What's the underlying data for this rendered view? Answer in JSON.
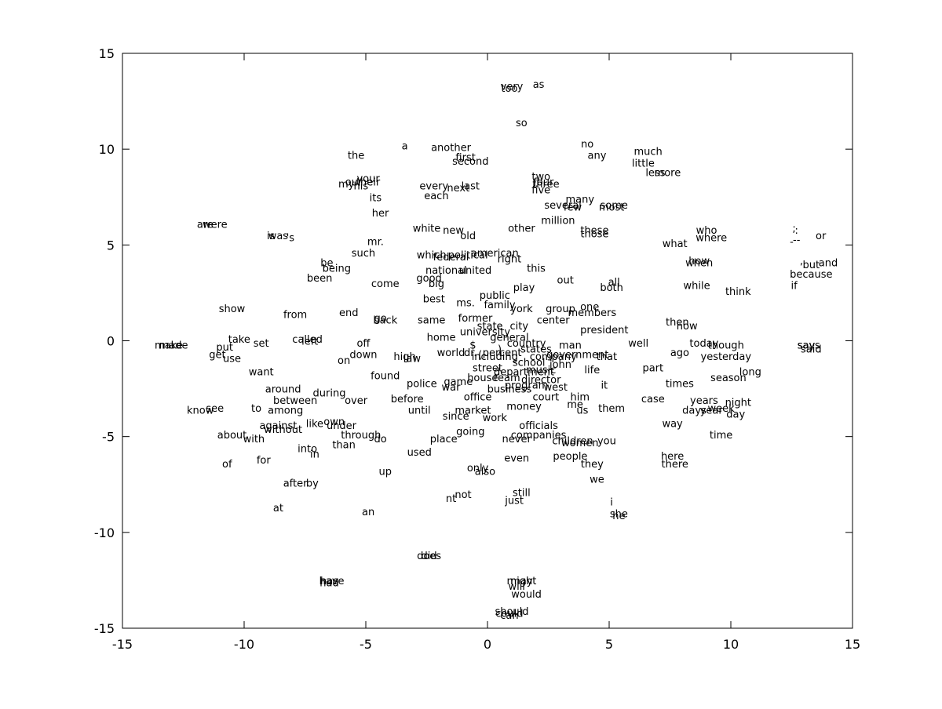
{
  "chart_data": {
    "type": "scatter",
    "title": "",
    "xlabel": "",
    "ylabel": "",
    "xlim": [
      -15,
      15
    ],
    "ylim": [
      -15,
      15
    ],
    "xticks": [
      "-15",
      "-10",
      "-5",
      "0",
      "5",
      "10",
      "15"
    ],
    "yticks": [
      "15",
      "10",
      "5",
      "0",
      "-5",
      "-10",
      "-15"
    ],
    "grid": false,
    "points": [
      {
        "label": "very",
        "x": 1.0,
        "y": 13.3
      },
      {
        "label": "too",
        "x": 0.9,
        "y": 13.2
      },
      {
        "label": "as",
        "x": 2.1,
        "y": 13.4
      },
      {
        "label": "so",
        "x": 1.4,
        "y": 11.4
      },
      {
        "label": "the",
        "x": -5.4,
        "y": 9.7
      },
      {
        "label": "a",
        "x": -3.4,
        "y": 10.2
      },
      {
        "label": "another",
        "x": -1.5,
        "y": 10.1
      },
      {
        "label": "first",
        "x": -0.9,
        "y": 9.6
      },
      {
        "label": "second",
        "x": -0.7,
        "y": 9.4
      },
      {
        "label": "no",
        "x": 4.1,
        "y": 10.3
      },
      {
        "label": "any",
        "x": 4.5,
        "y": 9.7
      },
      {
        "label": "much",
        "x": 6.6,
        "y": 9.9
      },
      {
        "label": "little",
        "x": 6.4,
        "y": 9.3
      },
      {
        "label": "less",
        "x": 6.9,
        "y": 8.8
      },
      {
        "label": "more",
        "x": 7.4,
        "y": 8.8
      },
      {
        "label": "your",
        "x": -4.9,
        "y": 8.5
      },
      {
        "label": "their",
        "x": -4.9,
        "y": 8.3
      },
      {
        "label": "our",
        "x": -5.5,
        "y": 8.3
      },
      {
        "label": "my",
        "x": -5.8,
        "y": 8.2
      },
      {
        "label": "his",
        "x": -5.2,
        "y": 8.1
      },
      {
        "label": "its",
        "x": -4.6,
        "y": 7.5
      },
      {
        "label": "her",
        "x": -4.4,
        "y": 6.7
      },
      {
        "label": "every",
        "x": -2.2,
        "y": 8.1
      },
      {
        "label": "next",
        "x": -1.2,
        "y": 8.0
      },
      {
        "label": "last",
        "x": -0.7,
        "y": 8.1
      },
      {
        "label": "each",
        "x": -2.1,
        "y": 7.6
      },
      {
        "label": "two",
        "x": 2.2,
        "y": 8.6
      },
      {
        "label": "four",
        "x": 2.3,
        "y": 8.3
      },
      {
        "label": "three",
        "x": 2.4,
        "y": 8.2
      },
      {
        "label": "five",
        "x": 2.2,
        "y": 7.9
      },
      {
        "label": "many",
        "x": 3.8,
        "y": 7.4
      },
      {
        "label": "several",
        "x": 3.1,
        "y": 7.1
      },
      {
        "label": "few",
        "x": 3.5,
        "y": 7.0
      },
      {
        "label": "some",
        "x": 5.2,
        "y": 7.1
      },
      {
        "label": "most",
        "x": 5.1,
        "y": 7.0
      },
      {
        "label": "million",
        "x": 2.9,
        "y": 6.3
      },
      {
        "label": "other",
        "x": 1.4,
        "y": 5.9
      },
      {
        "label": "these",
        "x": 4.4,
        "y": 5.8
      },
      {
        "label": "those",
        "x": 4.4,
        "y": 5.6
      },
      {
        "label": "white",
        "x": -2.5,
        "y": 5.9
      },
      {
        "label": "new",
        "x": -1.4,
        "y": 5.8
      },
      {
        "label": "old",
        "x": -0.8,
        "y": 5.5
      },
      {
        "label": "who",
        "x": 9.0,
        "y": 5.8
      },
      {
        "label": "where",
        "x": 9.2,
        "y": 5.4
      },
      {
        "label": "what",
        "x": 7.7,
        "y": 5.1
      },
      {
        "label": "or",
        "x": 13.7,
        "y": 5.5
      },
      {
        "label": ";",
        "x": 12.6,
        "y": 5.9
      },
      {
        "label": ":",
        "x": 12.7,
        "y": 5.8
      },
      {
        "label": "--",
        "x": 12.7,
        "y": 5.3
      },
      {
        "label": "-",
        "x": 12.5,
        "y": 5.2
      },
      {
        "label": "were",
        "x": -11.2,
        "y": 6.1
      },
      {
        "label": "are",
        "x": -11.6,
        "y": 6.1
      },
      {
        "label": "was",
        "x": -8.6,
        "y": 5.5
      },
      {
        "label": "is",
        "x": -8.9,
        "y": 5.5
      },
      {
        "label": "'s",
        "x": -8.1,
        "y": 5.4
      },
      {
        "label": "mr.",
        "x": -4.6,
        "y": 5.2
      },
      {
        "label": "such",
        "x": -5.1,
        "y": 4.6
      },
      {
        "label": "which",
        "x": -2.3,
        "y": 4.5
      },
      {
        "label": "federal",
        "x": -1.5,
        "y": 4.4
      },
      {
        "label": "political",
        "x": -0.8,
        "y": 4.5
      },
      {
        "label": "american",
        "x": 0.3,
        "y": 4.6
      },
      {
        "label": "right",
        "x": 0.9,
        "y": 4.3
      },
      {
        "label": "be",
        "x": -6.6,
        "y": 4.1
      },
      {
        "label": "being",
        "x": -6.2,
        "y": 3.8
      },
      {
        "label": "been",
        "x": -6.9,
        "y": 3.3
      },
      {
        "label": "national",
        "x": -1.7,
        "y": 3.7
      },
      {
        "label": "united",
        "x": -0.5,
        "y": 3.7
      },
      {
        "label": "this",
        "x": 2.0,
        "y": 3.8
      },
      {
        "label": "how",
        "x": 8.7,
        "y": 4.2
      },
      {
        "label": "when",
        "x": 8.7,
        "y": 4.1
      },
      {
        "label": "but",
        "x": 13.3,
        "y": 4.0
      },
      {
        "label": "and",
        "x": 14.0,
        "y": 4.1
      },
      {
        "label": ",",
        "x": 12.9,
        "y": 4.2
      },
      {
        "label": "because",
        "x": 13.3,
        "y": 3.5
      },
      {
        "label": "if",
        "x": 12.6,
        "y": 2.9
      },
      {
        "label": "come",
        "x": -4.2,
        "y": 3.0
      },
      {
        "label": "good",
        "x": -2.4,
        "y": 3.3
      },
      {
        "label": "big",
        "x": -2.1,
        "y": 3.0
      },
      {
        "label": "out",
        "x": 3.2,
        "y": 3.2
      },
      {
        "label": "all",
        "x": 5.2,
        "y": 3.1
      },
      {
        "label": "both",
        "x": 5.1,
        "y": 2.8
      },
      {
        "label": "play",
        "x": 1.5,
        "y": 2.8
      },
      {
        "label": "while",
        "x": 8.6,
        "y": 2.9
      },
      {
        "label": "think",
        "x": 10.3,
        "y": 2.6
      },
      {
        "label": "public",
        "x": 0.3,
        "y": 2.4
      },
      {
        "label": "best",
        "x": -2.2,
        "y": 2.2
      },
      {
        "label": "ms.",
        "x": -0.9,
        "y": 2.0
      },
      {
        "label": "family",
        "x": 0.5,
        "y": 1.9
      },
      {
        "label": "york",
        "x": 1.4,
        "y": 1.7
      },
      {
        "label": "group",
        "x": 3.0,
        "y": 1.7
      },
      {
        "label": "one",
        "x": 4.2,
        "y": 1.8
      },
      {
        "label": "members",
        "x": 4.3,
        "y": 1.5
      },
      {
        "label": "show",
        "x": -10.5,
        "y": 1.7
      },
      {
        "label": "from",
        "x": -7.9,
        "y": 1.4
      },
      {
        "label": "end",
        "x": -5.7,
        "y": 1.5
      },
      {
        "label": "go",
        "x": -4.4,
        "y": 1.2
      },
      {
        "label": "back",
        "x": -4.2,
        "y": 1.1
      },
      {
        "label": "same",
        "x": -2.3,
        "y": 1.1
      },
      {
        "label": "former",
        "x": -0.5,
        "y": 1.2
      },
      {
        "label": "center",
        "x": 2.7,
        "y": 1.1
      },
      {
        "label": "state",
        "x": 0.1,
        "y": 0.8
      },
      {
        "label": "city",
        "x": 1.3,
        "y": 0.8
      },
      {
        "label": "university",
        "x": -0.1,
        "y": 0.5
      },
      {
        "label": "president",
        "x": 4.8,
        "y": 0.6
      },
      {
        "label": "then",
        "x": 7.8,
        "y": 1.0
      },
      {
        "label": "now",
        "x": 8.2,
        "y": 0.8
      },
      {
        "label": "take",
        "x": -10.2,
        "y": 0.1
      },
      {
        "label": "set",
        "x": -9.3,
        "y": -0.1
      },
      {
        "label": "called",
        "x": -7.4,
        "y": 0.1
      },
      {
        "label": "left",
        "x": -7.3,
        "y": 0.0
      },
      {
        "label": "home",
        "x": -1.9,
        "y": 0.2
      },
      {
        "label": "general",
        "x": 0.9,
        "y": 0.2
      },
      {
        "label": "country",
        "x": 1.6,
        "y": -0.1
      },
      {
        "label": "well",
        "x": 6.2,
        "y": -0.1
      },
      {
        "label": "today",
        "x": 8.9,
        "y": -0.1
      },
      {
        "label": "though",
        "x": 9.8,
        "y": -0.2
      },
      {
        "label": "says",
        "x": 13.2,
        "y": -0.2
      },
      {
        "label": "say",
        "x": 13.1,
        "y": -0.2
      },
      {
        "label": "said",
        "x": 13.3,
        "y": -0.4
      },
      {
        "label": "made",
        "x": -12.9,
        "y": -0.2
      },
      {
        "label": "make",
        "x": -13.1,
        "y": -0.2
      },
      {
        "label": "put",
        "x": -10.8,
        "y": -0.3
      },
      {
        "label": "off",
        "x": -5.1,
        "y": -0.1
      },
      {
        "label": "$",
        "x": -0.6,
        "y": -0.2
      },
      {
        "label": ")",
        "x": 0.5,
        "y": -0.4
      },
      {
        "label": "states",
        "x": 2.0,
        "y": -0.4
      },
      {
        "label": "man",
        "x": 3.4,
        "y": -0.2
      },
      {
        "label": "world",
        "x": -1.5,
        "y": -0.6
      },
      {
        "label": "dr.",
        "x": -0.7,
        "y": -0.6
      },
      {
        "label": "percent",
        "x": 0.6,
        "y": -0.6
      },
      {
        "label": "(",
        "x": -0.3,
        "y": -0.7
      },
      {
        "label": "company",
        "x": 2.7,
        "y": -0.8
      },
      {
        "label": "government",
        "x": 3.7,
        "y": -0.7
      },
      {
        "label": "that",
        "x": 4.9,
        "y": -0.8
      },
      {
        "label": "ago",
        "x": 7.9,
        "y": -0.6
      },
      {
        "label": "yesterday",
        "x": 9.8,
        "y": -0.8
      },
      {
        "label": "get",
        "x": -11.1,
        "y": -0.7
      },
      {
        "label": "use",
        "x": -10.5,
        "y": -0.9
      },
      {
        "label": "down",
        "x": -5.1,
        "y": -0.7
      },
      {
        "label": "high",
        "x": -3.4,
        "y": -0.8
      },
      {
        "label": "law",
        "x": -3.1,
        "y": -0.9
      },
      {
        "label": "including",
        "x": 0.3,
        "y": -0.8
      },
      {
        "label": "school",
        "x": 1.7,
        "y": -1.1
      },
      {
        "label": "john",
        "x": 3.0,
        "y": -1.2
      },
      {
        "label": "on",
        "x": -5.9,
        "y": -1.0
      },
      {
        "label": "street",
        "x": 0.0,
        "y": -1.4
      },
      {
        "label": "department",
        "x": 1.5,
        "y": -1.6
      },
      {
        "label": "music",
        "x": 2.2,
        "y": -1.5
      },
      {
        "label": "life",
        "x": 4.3,
        "y": -1.5
      },
      {
        "label": "part",
        "x": 6.8,
        "y": -1.4
      },
      {
        "label": "long",
        "x": 10.8,
        "y": -1.6
      },
      {
        "label": "want",
        "x": -9.3,
        "y": -1.6
      },
      {
        "label": "found",
        "x": -4.2,
        "y": -1.8
      },
      {
        "label": "house",
        "x": -0.2,
        "y": -1.9
      },
      {
        "label": "team",
        "x": 0.8,
        "y": -1.9
      },
      {
        "label": "director",
        "x": 2.2,
        "y": -2.0
      },
      {
        "label": "season",
        "x": 9.9,
        "y": -1.9
      },
      {
        "label": "game",
        "x": -1.2,
        "y": -2.1
      },
      {
        "label": "police",
        "x": -2.7,
        "y": -2.2
      },
      {
        "label": "war",
        "x": -1.5,
        "y": -2.4
      },
      {
        "label": "program",
        "x": 1.6,
        "y": -2.3
      },
      {
        "label": "west",
        "x": 2.8,
        "y": -2.4
      },
      {
        "label": "it",
        "x": 4.8,
        "y": -2.3
      },
      {
        "label": "times",
        "x": 7.9,
        "y": -2.2
      },
      {
        "label": "around",
        "x": -8.4,
        "y": -2.5
      },
      {
        "label": "during",
        "x": -6.5,
        "y": -2.7
      },
      {
        "label": "business",
        "x": 0.9,
        "y": -2.5
      },
      {
        "label": "office",
        "x": -0.4,
        "y": -2.9
      },
      {
        "label": "court",
        "x": 2.4,
        "y": -2.9
      },
      {
        "label": "him",
        "x": 3.8,
        "y": -2.9
      },
      {
        "label": "case",
        "x": 6.8,
        "y": -3.0
      },
      {
        "label": "years",
        "x": 8.9,
        "y": -3.1
      },
      {
        "label": "night",
        "x": 10.3,
        "y": -3.2
      },
      {
        "label": "between",
        "x": -7.9,
        "y": -3.1
      },
      {
        "label": "over",
        "x": -5.4,
        "y": -3.1
      },
      {
        "label": "before",
        "x": -3.3,
        "y": -3.0
      },
      {
        "label": "money",
        "x": 1.5,
        "y": -3.4
      },
      {
        "label": "me",
        "x": 3.6,
        "y": -3.3
      },
      {
        "label": "week",
        "x": 9.6,
        "y": -3.5
      },
      {
        "label": "see",
        "x": -11.2,
        "y": -3.5
      },
      {
        "label": "know",
        "x": -11.8,
        "y": -3.6
      },
      {
        "label": "to",
        "x": -9.5,
        "y": -3.5
      },
      {
        "label": "among",
        "x": -8.3,
        "y": -3.6
      },
      {
        "label": "until",
        "x": -2.8,
        "y": -3.6
      },
      {
        "label": "market",
        "x": -0.6,
        "y": -3.6
      },
      {
        "label": "us",
        "x": 3.9,
        "y": -3.6
      },
      {
        "label": "them",
        "x": 5.1,
        "y": -3.5
      },
      {
        "label": "days",
        "x": 8.5,
        "y": -3.6
      },
      {
        "label": "year",
        "x": 9.2,
        "y": -3.6
      },
      {
        "label": "day",
        "x": 10.2,
        "y": -3.8
      },
      {
        "label": "since",
        "x": -1.3,
        "y": -3.9
      },
      {
        "label": "work",
        "x": 0.3,
        "y": -4.0
      },
      {
        "label": "own",
        "x": -6.3,
        "y": -4.2
      },
      {
        "label": "like",
        "x": -7.1,
        "y": -4.3
      },
      {
        "label": "under",
        "x": -6.0,
        "y": -4.4
      },
      {
        "label": "against",
        "x": -8.6,
        "y": -4.4
      },
      {
        "label": "without",
        "x": -8.4,
        "y": -4.6
      },
      {
        "label": "officials",
        "x": 2.1,
        "y": -4.4
      },
      {
        "label": "way",
        "x": 7.6,
        "y": -4.3
      },
      {
        "label": "about",
        "x": -10.5,
        "y": -4.9
      },
      {
        "label": "with",
        "x": -9.6,
        "y": -5.1
      },
      {
        "label": "through",
        "x": -5.2,
        "y": -4.9
      },
      {
        "label": "do",
        "x": -4.4,
        "y": -5.1
      },
      {
        "label": "going",
        "x": -0.7,
        "y": -4.7
      },
      {
        "label": "companies",
        "x": 2.1,
        "y": -4.9
      },
      {
        "label": "never",
        "x": 1.2,
        "y": -5.1
      },
      {
        "label": "time",
        "x": 9.6,
        "y": -4.9
      },
      {
        "label": "place",
        "x": -1.8,
        "y": -5.1
      },
      {
        "label": "children",
        "x": 3.5,
        "y": -5.2
      },
      {
        "label": "you",
        "x": 4.9,
        "y": -5.2
      },
      {
        "label": "women",
        "x": 3.8,
        "y": -5.3
      },
      {
        "label": "than",
        "x": -5.9,
        "y": -5.4
      },
      {
        "label": "into",
        "x": -7.4,
        "y": -5.6
      },
      {
        "label": "used",
        "x": -2.8,
        "y": -5.8
      },
      {
        "label": "in",
        "x": -7.1,
        "y": -5.9
      },
      {
        "label": "people",
        "x": 3.4,
        "y": -6.0
      },
      {
        "label": "even",
        "x": 1.2,
        "y": -6.1
      },
      {
        "label": "here",
        "x": 7.6,
        "y": -6.0
      },
      {
        "label": "of",
        "x": -10.7,
        "y": -6.4
      },
      {
        "label": "for",
        "x": -9.2,
        "y": -6.2
      },
      {
        "label": "they",
        "x": 4.3,
        "y": -6.4
      },
      {
        "label": "there",
        "x": 7.7,
        "y": -6.4
      },
      {
        "label": "only",
        "x": -0.4,
        "y": -6.6
      },
      {
        "label": "also",
        "x": -0.1,
        "y": -6.8
      },
      {
        "label": "up",
        "x": -4.2,
        "y": -6.8
      },
      {
        "label": "after",
        "x": -7.9,
        "y": -7.4
      },
      {
        "label": "by",
        "x": -7.2,
        "y": -7.4
      },
      {
        "label": "we",
        "x": 4.5,
        "y": -7.2
      },
      {
        "label": "still",
        "x": 1.4,
        "y": -7.9
      },
      {
        "label": "not",
        "x": -1.0,
        "y": -8.0
      },
      {
        "label": "nt",
        "x": -1.5,
        "y": -8.2
      },
      {
        "label": "just",
        "x": 1.1,
        "y": -8.3
      },
      {
        "label": "i",
        "x": 5.1,
        "y": -8.4
      },
      {
        "label": "at",
        "x": -8.6,
        "y": -8.7
      },
      {
        "label": "an",
        "x": -4.9,
        "y": -8.9
      },
      {
        "label": "she",
        "x": 5.4,
        "y": -9.0
      },
      {
        "label": "he",
        "x": 5.4,
        "y": -9.1
      },
      {
        "label": "did",
        "x": -2.4,
        "y": -11.2
      },
      {
        "label": "does",
        "x": -2.4,
        "y": -11.2
      },
      {
        "label": "has",
        "x": -6.5,
        "y": -12.5
      },
      {
        "label": "had",
        "x": -6.5,
        "y": -12.6
      },
      {
        "label": "have",
        "x": -6.4,
        "y": -12.5
      },
      {
        "label": "may",
        "x": 1.4,
        "y": -12.5
      },
      {
        "label": "might",
        "x": 1.4,
        "y": -12.5
      },
      {
        "label": "will",
        "x": 1.2,
        "y": -12.8
      },
      {
        "label": "would",
        "x": 1.6,
        "y": -13.2
      },
      {
        "label": "should",
        "x": 1.0,
        "y": -14.1
      },
      {
        "label": "could",
        "x": 0.9,
        "y": -14.2
      },
      {
        "label": "can",
        "x": 0.9,
        "y": -14.3
      }
    ]
  }
}
